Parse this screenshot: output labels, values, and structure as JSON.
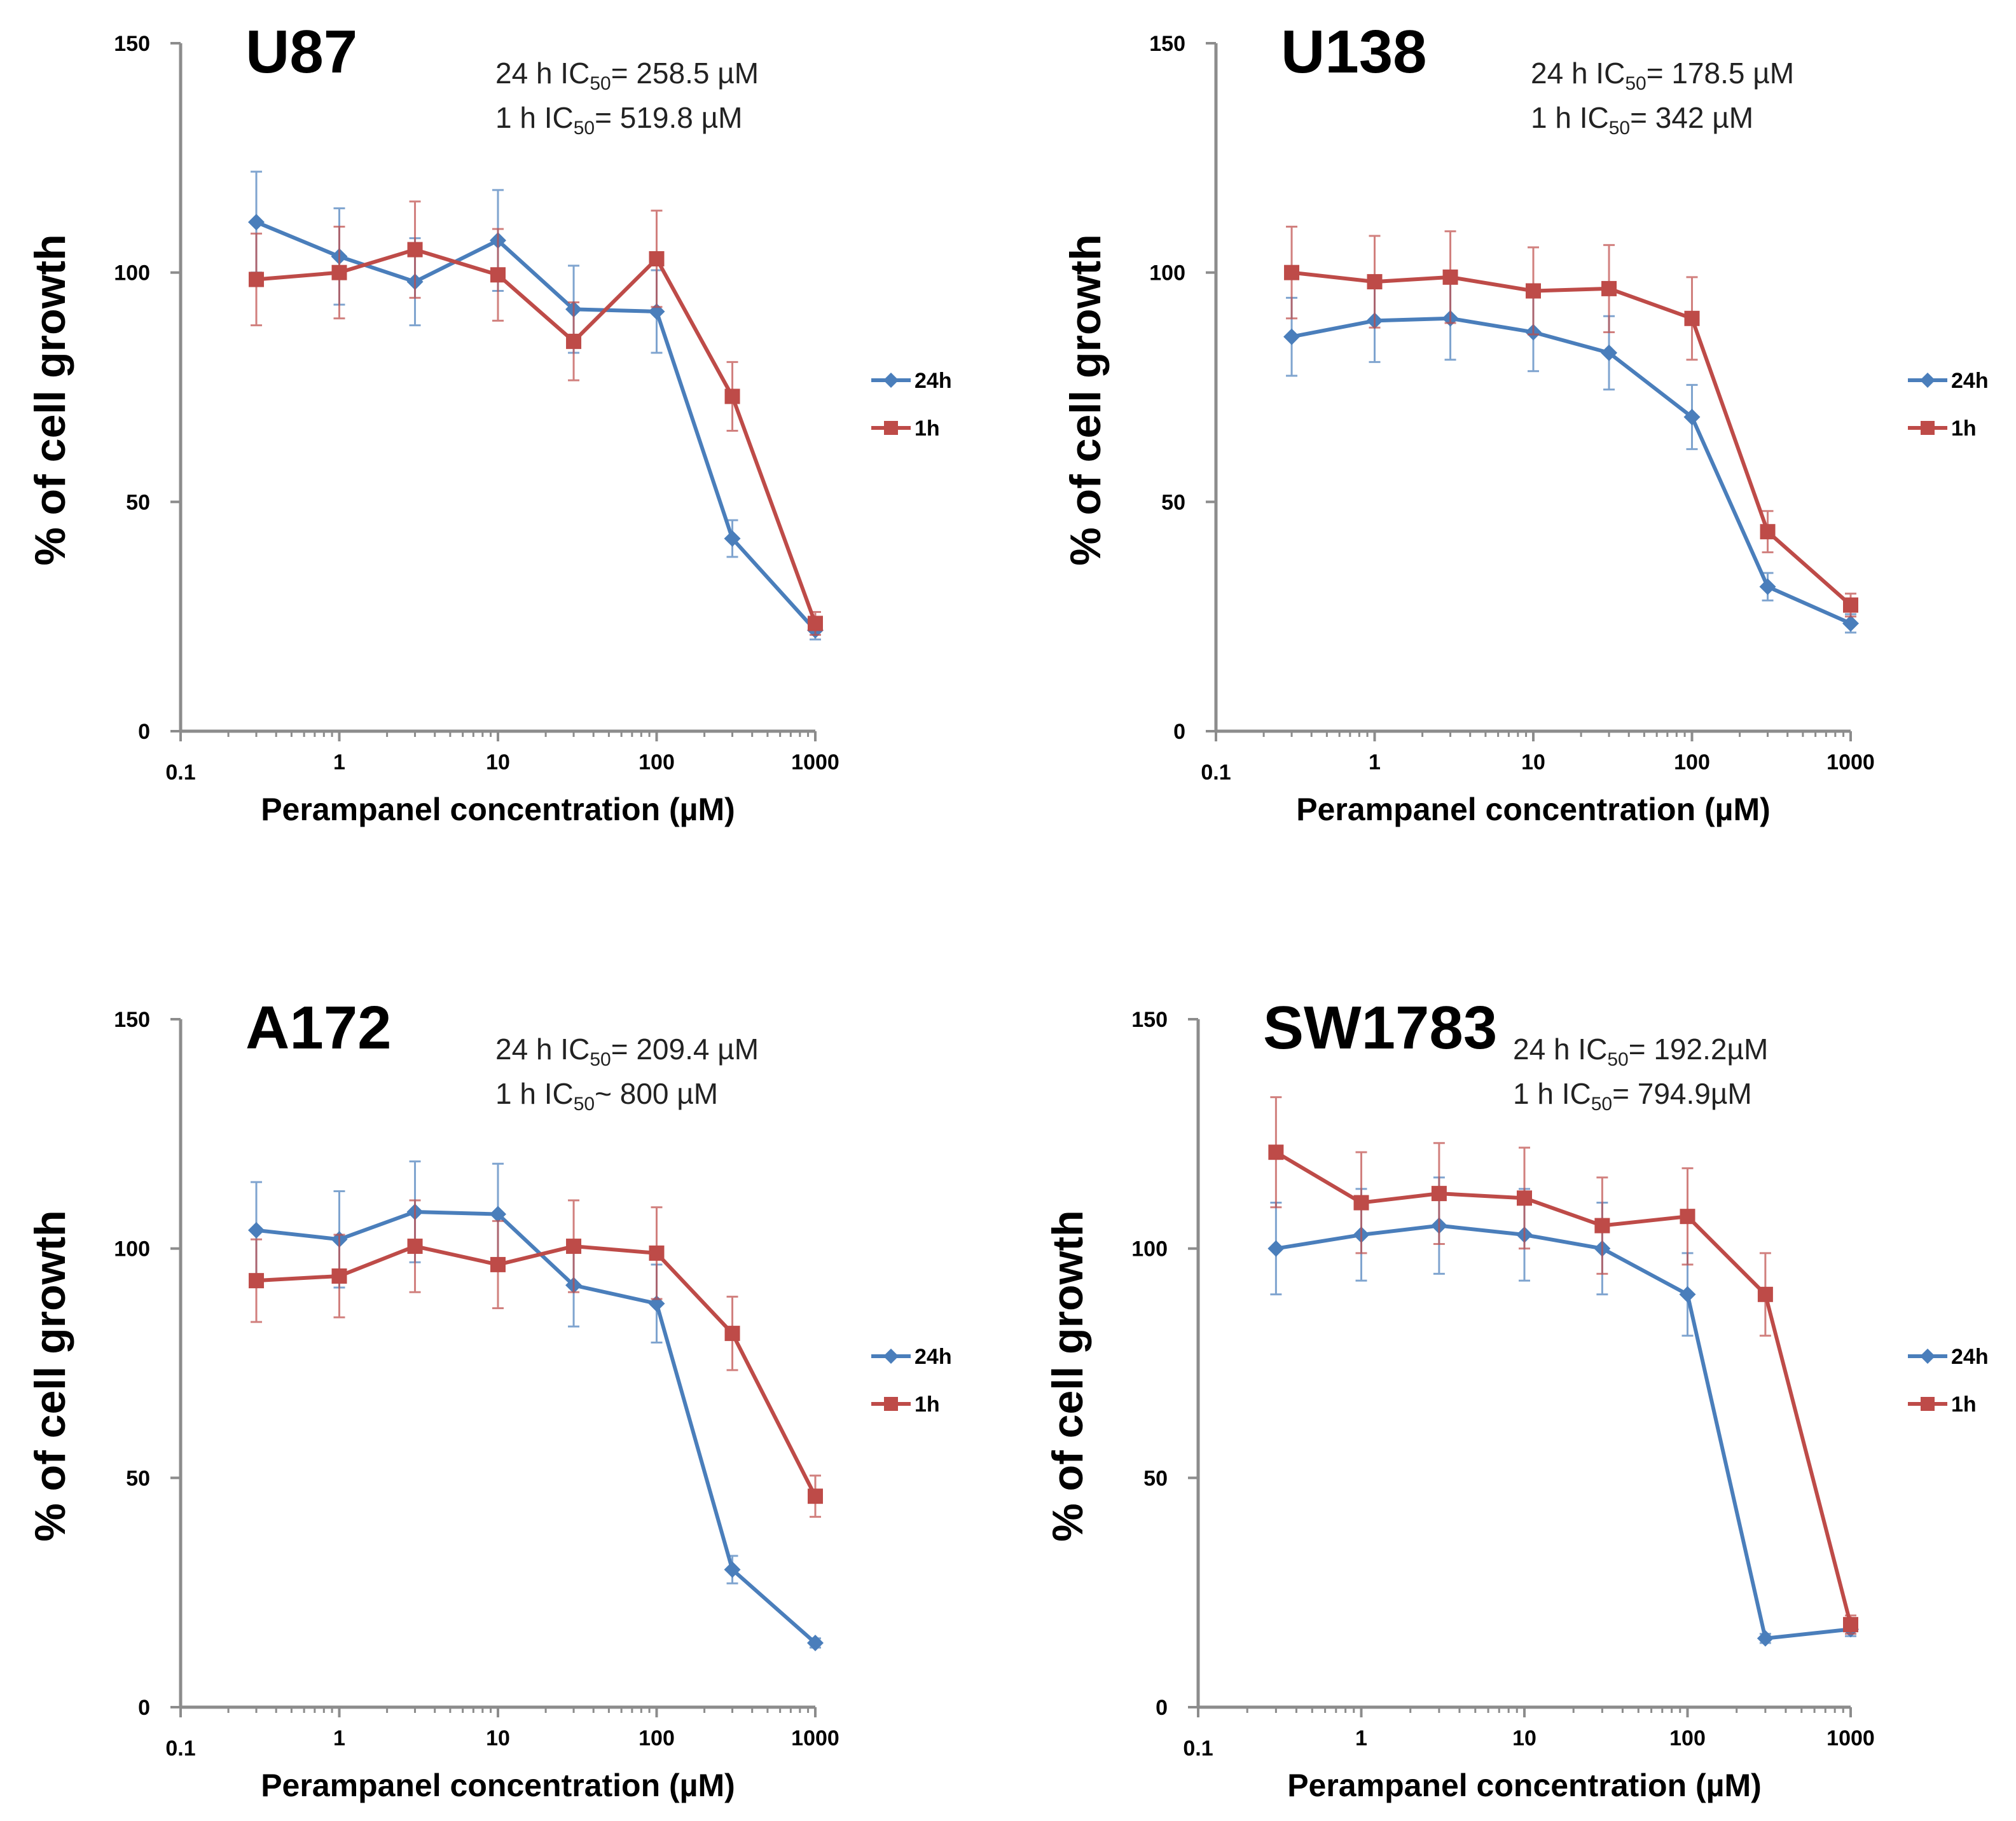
{
  "figure": {
    "description_axis": "log-x dose response"
  },
  "chart_data": [
    {
      "type": "line",
      "title": "U87",
      "annotations": [
        "24 h IC",
        "50",
        "= 258.5 µM",
        "1 h   IC",
        "50",
        "= 519.8 µM"
      ],
      "xlabel": "Perampanel concentration (µM)",
      "ylabel": "% of cell growth",
      "x_scale": "log",
      "xlim": [
        0.1,
        1000
      ],
      "ylim": [
        0,
        150
      ],
      "x_ticks": [
        "0.1",
        "1",
        "10",
        "100",
        "1000"
      ],
      "y_ticks": [
        "0",
        "50",
        "100",
        "150"
      ],
      "x": [
        0.3,
        1,
        3,
        10,
        30,
        100,
        300,
        1000
      ],
      "series": [
        {
          "name": "24h",
          "color": "#4a7ebb",
          "marker": "diamond",
          "values": [
            111,
            103.5,
            98,
            107,
            92,
            91.5,
            42,
            22
          ],
          "errors": [
            11,
            10.5,
            9.5,
            11,
            9.5,
            9,
            4,
            2
          ]
        },
        {
          "name": "1h",
          "color": "#be4b48",
          "marker": "square",
          "values": [
            98.5,
            100,
            105,
            99.5,
            85,
            103,
            73,
            23.5
          ],
          "errors": [
            10,
            10,
            10.5,
            10,
            8.5,
            10.5,
            7.5,
            2.5
          ]
        }
      ],
      "legend": [
        "24h",
        "1h"
      ],
      "legend_position": "right"
    },
    {
      "type": "line",
      "title": "U138",
      "annotations": [
        "24 h IC",
        "50",
        "= 178.5 µM",
        "1 h   IC",
        "50",
        "= 342 µM"
      ],
      "xlabel": "Perampanel concentration (µM)",
      "ylabel": "% of cell growth",
      "x_scale": "log",
      "xlim": [
        0.1,
        1000
      ],
      "ylim": [
        0,
        150
      ],
      "x_ticks": [
        "0.1",
        "1",
        "10",
        "100",
        "1000"
      ],
      "y_ticks": [
        "0",
        "50",
        "100",
        "150"
      ],
      "x": [
        0.3,
        1,
        3,
        10,
        30,
        100,
        300,
        1000
      ],
      "series": [
        {
          "name": "24h",
          "color": "#4a7ebb",
          "marker": "diamond",
          "values": [
            86,
            89.5,
            90,
            87,
            82.5,
            68.5,
            31.5,
            23.5
          ],
          "errors": [
            8.5,
            9,
            9,
            8.5,
            8,
            7,
            3,
            2
          ]
        },
        {
          "name": "1h",
          "color": "#be4b48",
          "marker": "square",
          "values": [
            100,
            98,
            99,
            96,
            96.5,
            90,
            43.5,
            27.5
          ],
          "errors": [
            10,
            10,
            10,
            9.5,
            9.5,
            9,
            4.5,
            2.5
          ]
        }
      ],
      "legend": [
        "24h",
        "1h"
      ],
      "legend_position": "right"
    },
    {
      "type": "line",
      "title": "A172",
      "annotations": [
        "24 h IC",
        "50",
        "= 209.4 µM",
        "1 h   IC",
        "50",
        "~ 800 µM"
      ],
      "xlabel": "Perampanel concentration (µM)",
      "ylabel": "% of cell growth",
      "x_scale": "log",
      "xlim": [
        0.1,
        1000
      ],
      "ylim": [
        0,
        150
      ],
      "x_ticks": [
        "0.1",
        "1",
        "10",
        "100",
        "1000"
      ],
      "y_ticks": [
        "0",
        "50",
        "100",
        "150"
      ],
      "x": [
        0.3,
        1,
        3,
        10,
        30,
        100,
        300,
        1000
      ],
      "series": [
        {
          "name": "24h",
          "color": "#4a7ebb",
          "marker": "diamond",
          "values": [
            104,
            102,
            108,
            107.5,
            92,
            88,
            30,
            14
          ],
          "errors": [
            10.5,
            10.5,
            11,
            11,
            9,
            8.5,
            3,
            1
          ]
        },
        {
          "name": "1h",
          "color": "#be4b48",
          "marker": "square",
          "values": [
            93,
            94,
            100.5,
            96.5,
            100.5,
            99,
            81.5,
            46
          ],
          "errors": [
            9,
            9,
            10,
            9.5,
            10,
            10,
            8,
            4.5
          ]
        }
      ],
      "legend": [
        "24h",
        "1h"
      ],
      "legend_position": "right"
    },
    {
      "type": "line",
      "title": "SW1783",
      "annotations": [
        "24 h IC",
        "50",
        "= 192.2µM",
        "1 h   IC",
        "50",
        "= 794.9µM"
      ],
      "xlabel": "Perampanel concentration (µM)",
      "ylabel": "% of cell growth",
      "x_scale": "log",
      "xlim": [
        0.1,
        1000
      ],
      "ylim": [
        0,
        150
      ],
      "x_ticks": [
        "0.1",
        "1",
        "10",
        "100",
        "1000"
      ],
      "y_ticks": [
        "0",
        "50",
        "100",
        "150"
      ],
      "x": [
        0.3,
        1,
        3,
        10,
        30,
        100,
        300,
        1000
      ],
      "series": [
        {
          "name": "24h",
          "color": "#4a7ebb",
          "marker": "diamond",
          "values": [
            100,
            103,
            105,
            103,
            100,
            90,
            15,
            17
          ],
          "errors": [
            10,
            10,
            10.5,
            10,
            10,
            9,
            1,
            1.5
          ]
        },
        {
          "name": "1h",
          "color": "#be4b48",
          "marker": "square",
          "values": [
            121,
            110,
            112,
            111,
            105,
            107,
            90,
            18
          ],
          "errors": [
            12,
            11,
            11,
            11,
            10.5,
            10.5,
            9,
            2
          ]
        }
      ],
      "legend": [
        "24h",
        "1h"
      ],
      "legend_position": "right"
    }
  ]
}
